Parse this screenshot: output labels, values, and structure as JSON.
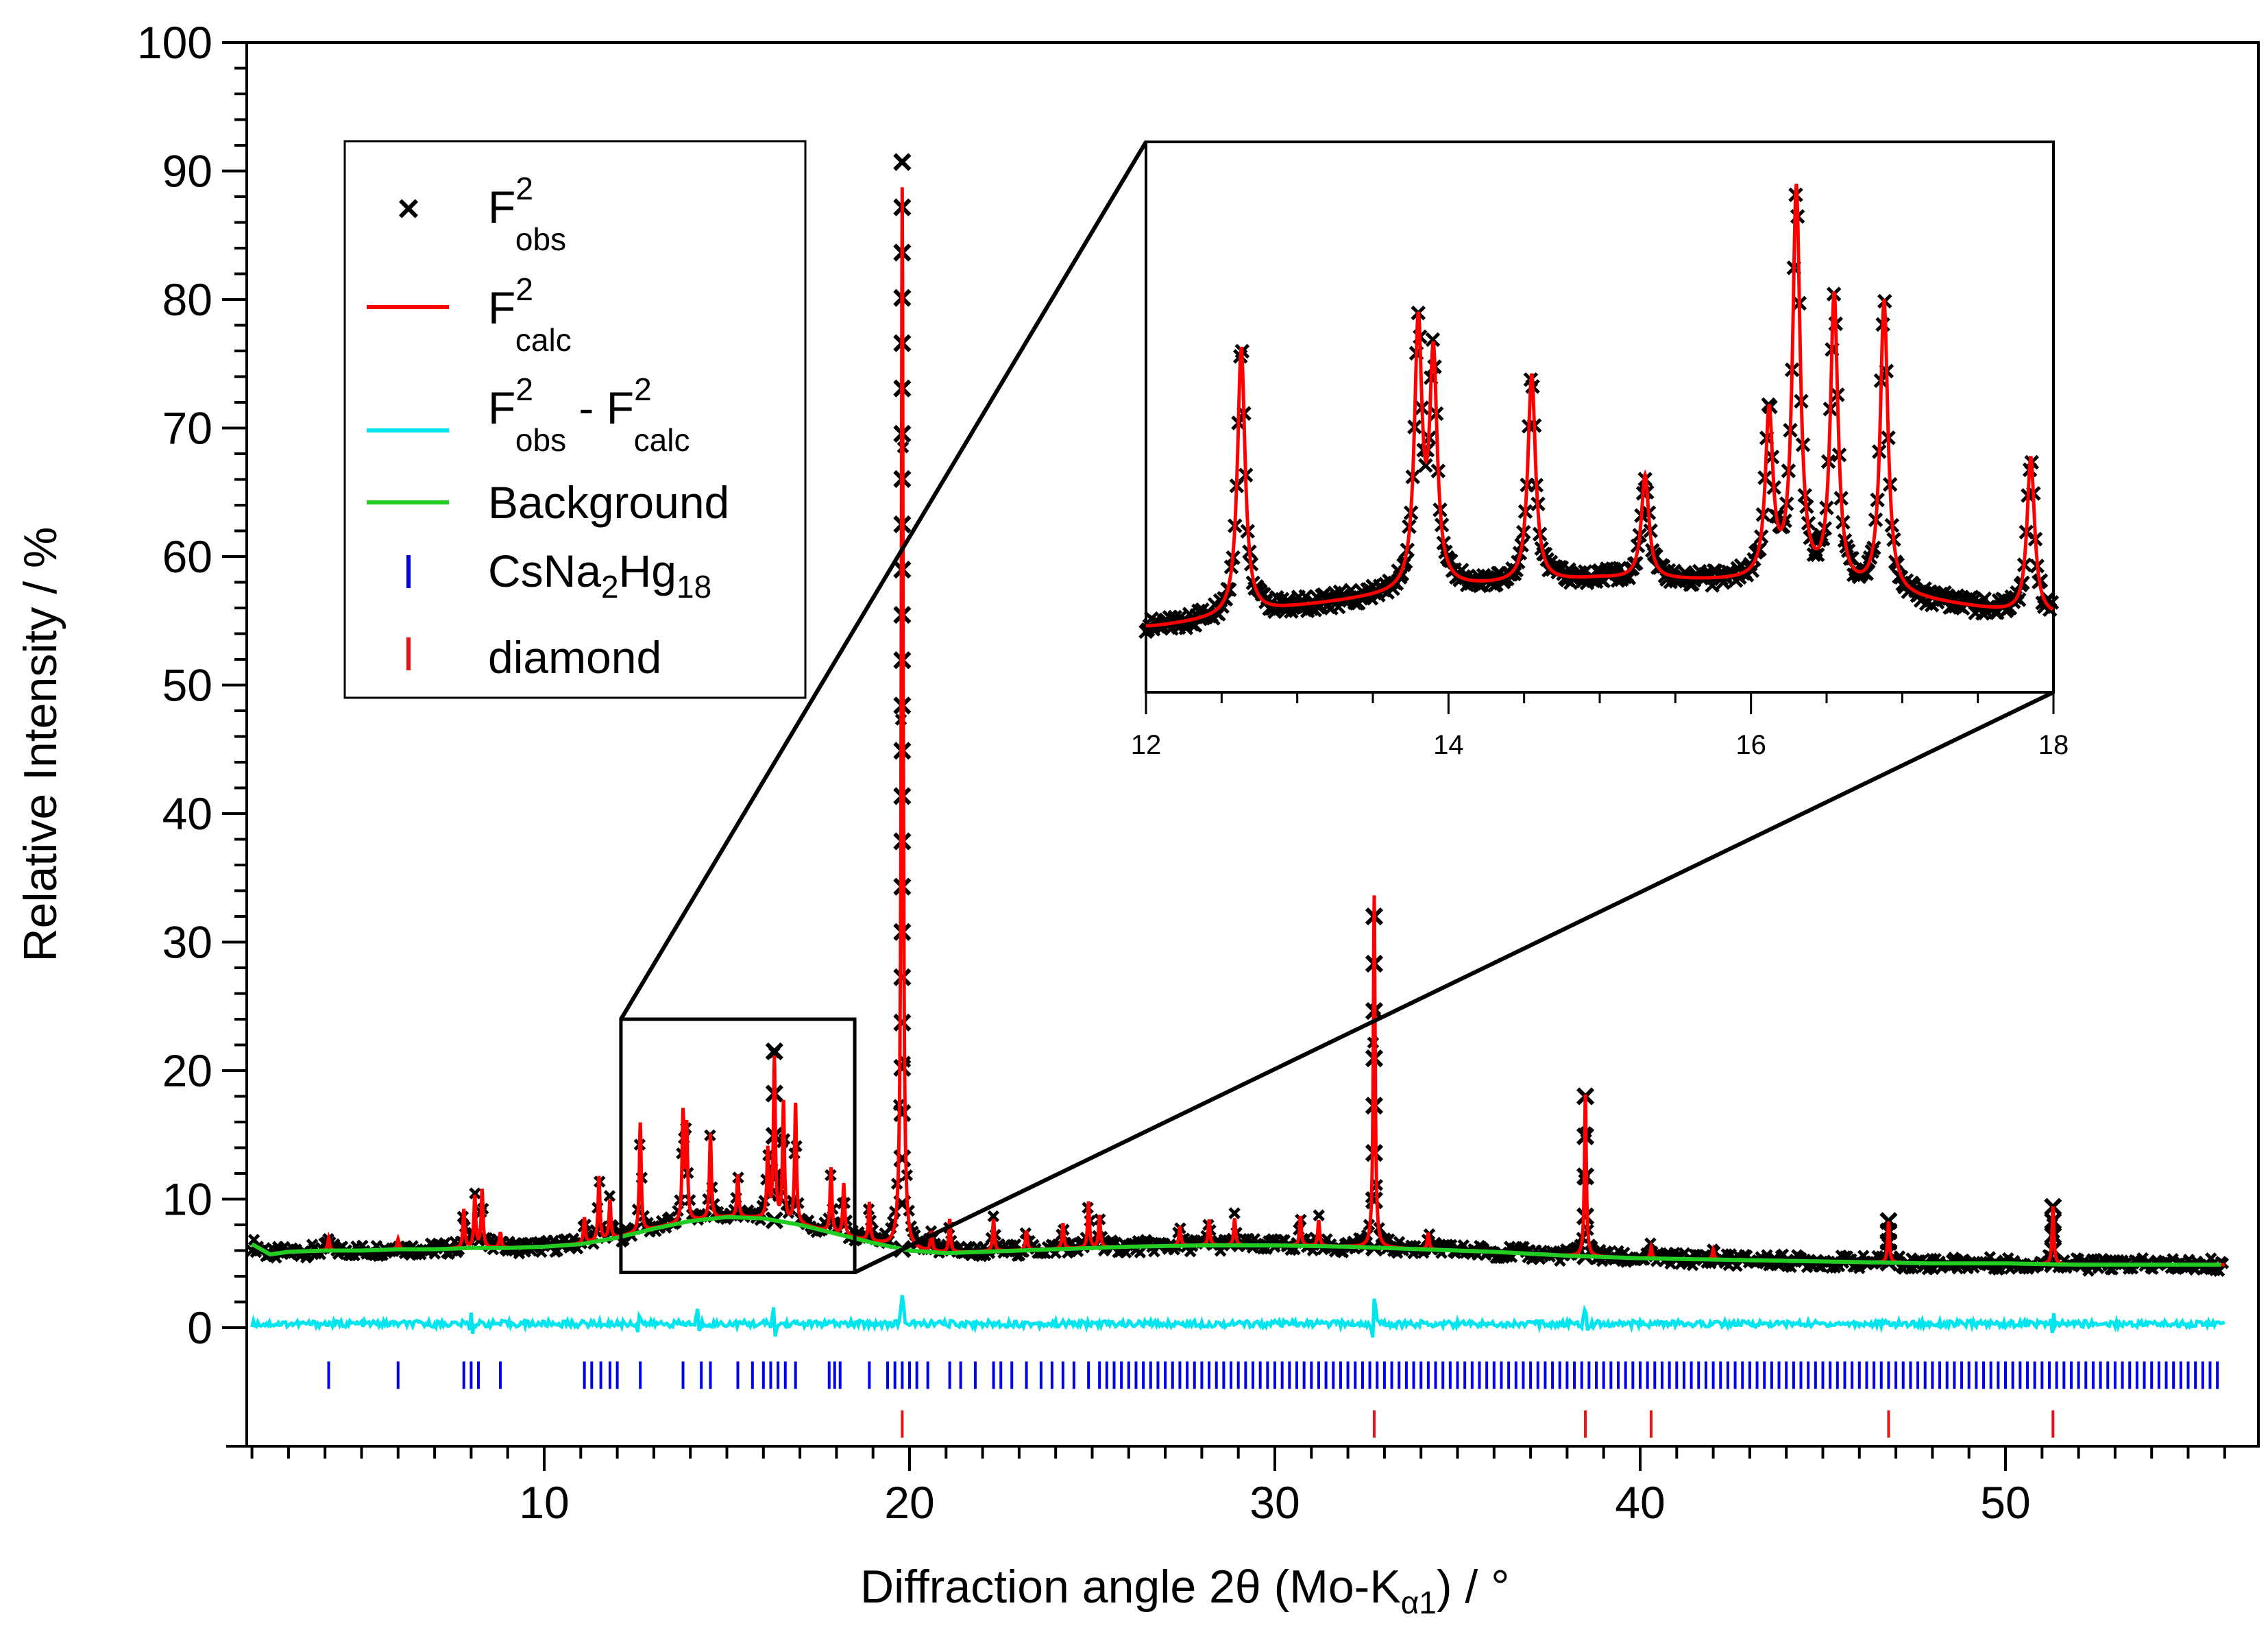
{
  "chart_data": {
    "type": "line",
    "title": "",
    "xlabel": "Diffraction angle 2θ (Mo-K",
    "xlabel_subscript": "α1",
    "xlabel_suffix": ") / °",
    "ylabel": "Relative Intensity / %",
    "xlim": [
      2,
      56
    ],
    "ylim": [
      -9,
      100
    ],
    "x_major_ticks": [
      10,
      20,
      30,
      40,
      50
    ],
    "y_major_ticks": [
      0,
      10,
      20,
      30,
      40,
      50,
      60,
      70,
      80,
      90,
      100
    ],
    "grid": false,
    "legend": {
      "placement": "top-left",
      "entries": [
        {
          "name": "F_obs^2",
          "base": "F",
          "sup": "2",
          "sub": "obs",
          "marker": "x",
          "color": "#000000"
        },
        {
          "name": "F_calc^2",
          "base": "F",
          "sup": "2",
          "sub": "calc",
          "marker": "line",
          "color": "#ff0000"
        },
        {
          "name": "F_obs^2 - F_calc^2",
          "base": "F",
          "sup": "2",
          "sub": "obs",
          "mid": " - ",
          "base2": "F",
          "sup2": "2",
          "sub2": "calc",
          "marker": "line",
          "color": "#00e5ee"
        },
        {
          "name": "Background",
          "text": "Background",
          "marker": "line",
          "color": "#22cc22"
        },
        {
          "name": "CsNa2Hg18",
          "parts": [
            "CsNa",
            "2",
            "Hg",
            "18"
          ],
          "marker": "tick",
          "color": "#0000ee"
        },
        {
          "name": "diamond",
          "text": "diamond",
          "marker": "tick",
          "color": "#ee1111"
        }
      ]
    },
    "background": {
      "x": [
        2,
        2.5,
        3,
        4,
        5,
        6,
        7,
        8,
        9,
        10,
        11,
        12,
        13,
        14,
        15,
        16,
        17,
        18,
        19,
        20,
        21,
        22,
        24,
        26,
        28,
        30,
        32,
        34,
        36,
        38,
        40,
        42,
        44,
        46,
        48,
        50,
        52,
        54,
        56
      ],
      "y": [
        6.5,
        5.7,
        5.9,
        6.0,
        6.0,
        6.1,
        6.1,
        6.2,
        6.2,
        6.3,
        6.5,
        7.0,
        7.7,
        8.3,
        8.6,
        8.5,
        8.0,
        7.3,
        6.6,
        6.0,
        5.8,
        5.9,
        6.1,
        6.3,
        6.4,
        6.4,
        6.3,
        6.1,
        5.9,
        5.6,
        5.4,
        5.3,
        5.2,
        5.1,
        5.0,
        5.0,
        4.9,
        4.9,
        4.9
      ]
    },
    "calc_peaks": [
      {
        "x": 4.1,
        "h": 1.0
      },
      {
        "x": 6.0,
        "h": 0.8
      },
      {
        "x": 7.8,
        "h": 3.0
      },
      {
        "x": 8.1,
        "h": 4.0
      },
      {
        "x": 8.3,
        "h": 4.5
      },
      {
        "x": 8.8,
        "h": 1.2
      },
      {
        "x": 11.1,
        "h": 2.0
      },
      {
        "x": 11.5,
        "h": 5.0
      },
      {
        "x": 11.8,
        "h": 3.0
      },
      {
        "x": 12.63,
        "h": 8.5
      },
      {
        "x": 13.8,
        "h": 8.3
      },
      {
        "x": 13.9,
        "h": 7.2
      },
      {
        "x": 14.55,
        "h": 6.6
      },
      {
        "x": 15.3,
        "h": 3.3
      },
      {
        "x": 16.12,
        "h": 5.3
      },
      {
        "x": 16.3,
        "h": 12.5
      },
      {
        "x": 16.55,
        "h": 9.2
      },
      {
        "x": 16.88,
        "h": 9.3
      },
      {
        "x": 17.85,
        "h": 5.0
      },
      {
        "x": 18.2,
        "h": 4.0
      },
      {
        "x": 18.9,
        "h": 3.0
      },
      {
        "x": 19.8,
        "h": 82.6
      },
      {
        "x": 20.6,
        "h": 1.5
      },
      {
        "x": 21.1,
        "h": 2.6
      },
      {
        "x": 22.3,
        "h": 2.5
      },
      {
        "x": 23.2,
        "h": 1.5
      },
      {
        "x": 24.2,
        "h": 2.0
      },
      {
        "x": 24.9,
        "h": 3.6
      },
      {
        "x": 25.2,
        "h": 2.5
      },
      {
        "x": 27.4,
        "h": 1.5
      },
      {
        "x": 28.2,
        "h": 2.0
      },
      {
        "x": 28.9,
        "h": 2.1
      },
      {
        "x": 30.7,
        "h": 2.3
      },
      {
        "x": 31.2,
        "h": 2.0
      },
      {
        "x": 32.72,
        "h": 27.4
      },
      {
        "x": 34.2,
        "h": 1.3
      },
      {
        "x": 38.5,
        "h": 12.6
      },
      {
        "x": 40.3,
        "h": 0.9
      },
      {
        "x": 42.0,
        "h": 0.8
      },
      {
        "x": 46.8,
        "h": 3.2
      },
      {
        "x": 51.3,
        "h": 4.5
      }
    ],
    "obs_peak_tops": [
      {
        "x": 19.8,
        "y": 90.7
      },
      {
        "x": 32.72,
        "y": 32.0
      },
      {
        "x": 38.5,
        "y": 18.0
      },
      {
        "x": 16.3,
        "y": 21.5
      },
      {
        "x": 46.8,
        "y": 8.3
      },
      {
        "x": 51.3,
        "y": 9.4
      }
    ],
    "difference": {
      "offset": 0.3,
      "spikes": [
        {
          "x": 8.0,
          "a": 1.0
        },
        {
          "x": 12.6,
          "a": -0.8
        },
        {
          "x": 14.2,
          "a": 1.0
        },
        {
          "x": 16.3,
          "a": 1.2
        },
        {
          "x": 19.8,
          "a": 2.0
        },
        {
          "x": 32.72,
          "a": 1.8
        },
        {
          "x": 38.5,
          "a": 1.2
        },
        {
          "x": 51.3,
          "a": 1.0
        }
      ]
    },
    "phase_ticks": {
      "CsNa2Hg18": {
        "color": "#0000ee",
        "y": -3.7,
        "x": [
          4.1,
          6.0,
          7.8,
          8.0,
          8.2,
          8.8,
          11.1,
          11.3,
          11.55,
          11.8,
          12.0,
          12.63,
          13.8,
          14.3,
          14.55,
          15.3,
          15.7,
          16.0,
          16.2,
          16.4,
          16.6,
          16.88,
          17.8,
          17.95,
          18.1,
          18.9,
          19.4,
          19.6,
          19.8,
          20.0,
          20.2,
          20.5,
          21.1,
          21.4,
          21.8,
          22.3,
          22.5,
          22.8,
          23.2,
          23.6,
          23.9,
          24.2,
          24.5,
          24.9,
          25.2,
          25.4,
          25.6,
          25.8,
          26.0,
          26.2,
          26.4,
          26.6,
          26.8,
          27.0,
          27.2,
          27.4,
          27.6,
          27.8,
          28.0,
          28.2,
          28.4,
          28.6,
          28.8,
          29.0,
          29.2,
          29.4,
          29.6,
          29.8,
          30.0,
          30.2,
          30.4,
          30.6,
          30.8,
          31.0,
          31.2,
          31.4,
          31.6,
          31.8,
          32.0,
          32.2,
          32.4,
          32.6,
          32.8,
          33.0,
          33.2,
          33.4,
          33.6,
          33.8,
          34.0,
          34.2,
          34.4,
          34.6,
          34.8,
          35.0,
          35.2,
          35.4,
          35.6,
          35.8,
          36.0,
          36.2,
          36.4,
          36.6,
          36.8,
          37.0,
          37.2,
          37.4,
          37.6,
          37.8,
          38.0,
          38.2,
          38.4,
          38.6,
          38.8,
          39.0,
          39.2,
          39.4,
          39.6,
          39.8,
          40.0,
          40.2,
          40.4,
          40.6,
          40.8,
          41.0,
          41.2,
          41.4,
          41.6,
          41.8,
          42.0,
          42.2,
          42.4,
          42.6,
          42.8,
          43.0,
          43.2,
          43.4,
          43.6,
          43.8,
          44.0,
          44.2,
          44.4,
          44.6,
          44.8,
          45.0,
          45.2,
          45.4,
          45.6,
          45.8,
          46.0,
          46.2,
          46.4,
          46.6,
          46.8,
          47.0,
          47.2,
          47.4,
          47.6,
          47.8,
          48.0,
          48.2,
          48.4,
          48.6,
          48.8,
          49.0,
          49.2,
          49.4,
          49.6,
          49.8,
          50.0,
          50.2,
          50.4,
          50.6,
          50.8,
          51.0,
          51.2,
          51.4,
          51.6,
          51.8,
          52.0,
          52.2,
          52.4,
          52.6,
          52.8,
          53.0,
          53.2,
          53.4,
          53.6,
          53.8,
          54.0,
          54.2,
          54.4,
          54.6,
          54.8,
          55.0,
          55.2,
          55.4,
          55.6,
          55.8
        ]
      },
      "diamond": {
        "color": "#ee1111",
        "y": -7.5,
        "x": [
          19.8,
          32.72,
          38.5,
          40.3,
          46.8,
          51.3
        ]
      }
    },
    "zoom_box": {
      "x": [
        12.1,
        18.5
      ],
      "y": [
        4.3,
        24.0
      ]
    },
    "inset": {
      "xlim": [
        12,
        18
      ],
      "x_major_ticks": [
        12,
        14,
        16,
        18
      ],
      "x_tick_labels": [
        "12",
        "14",
        "16",
        "18"
      ],
      "ylim": [
        5,
        22.5
      ]
    }
  }
}
